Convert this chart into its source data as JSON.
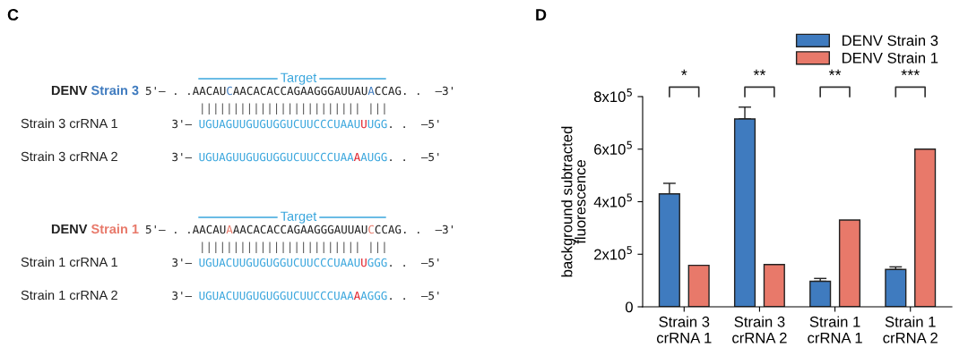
{
  "chart_data": [
    {
      "type": "other",
      "title": "C",
      "annotations": [
        "Target",
        "DENV",
        " Strain 3",
        "5'– . .AACAU",
        "C",
        "AACACACCAGAAGGGAUUAU",
        "A",
        "CCAG. .  –3'",
        "|||||||||||||||||||||||| |||",
        "Strain 3 crRNA 1",
        "3'– ",
        "UGUAGUUGUGUGGUCUUCCCUAAU",
        "U",
        "UGG",
        ". .  –5'",
        "Strain 3 crRNA 2",
        "3'– ",
        "UGUAGUUGUGUGGUCUUCCCUAA",
        "A",
        "AUGG",
        ". .  –5'",
        "Target",
        "DENV",
        " Strain 1",
        "5'– . .AACAU",
        "A",
        "AACACACCAGAAGGGAUUAU",
        "C",
        "CCAG. .  –3'",
        "|||||||||||||||||||||||| |||",
        "Strain 1 crRNA 1",
        "3'– ",
        "UGUACUUGUGUGGUCUUCCCUAAU",
        "U",
        "GGG",
        ". .  –5'",
        "Strain 1 crRNA 2",
        "3'– ",
        "UGUACUUGUGUGGUCUUCCCUAA",
        "A",
        "AGGG",
        ". .  –5'"
      ],
      "colors": [
        "#3aa6dd",
        "#222222",
        "#3f7bbf",
        "#222222",
        "#3f7bbf",
        "#222222",
        "#3f7bbf",
        "#222222",
        "#555555",
        "#222222",
        "#222222",
        "#3aa6dd",
        "#e0202a",
        "#3aa6dd",
        "#222222",
        "#222222",
        "#222222",
        "#3aa6dd",
        "#e0202a",
        "#3aa6dd",
        "#222222",
        "#3aa6dd",
        "#222222",
        "#e8796a",
        "#222222",
        "#e8796a",
        "#222222",
        "#e8796a",
        "#222222",
        "#555555",
        "#222222",
        "#222222",
        "#3aa6dd",
        "#e0202a",
        "#3aa6dd",
        "#222222",
        "#222222",
        "#222222",
        "#3aa6dd",
        "#e0202a",
        "#3aa6dd",
        "#222222"
      ]
    },
    {
      "type": "bar",
      "title": "D",
      "ylabel": "background subtracted\nfluorescence",
      "categories": [
        "Strain 3\ncrRNA 1",
        "Strain 3\ncrRNA 2",
        "Strain 1\ncrRNA 1",
        "Strain 1\ncrRNA 2"
      ],
      "series": [
        {
          "name": "DENV Strain 3",
          "color": "#3f7bbf",
          "values": [
            430000,
            715000,
            97000,
            142000
          ],
          "errors": [
            [
              430000,
              470000
            ],
            [
              715000,
              760000
            ],
            [
              97000,
              108000
            ],
            [
              142000,
              152000
            ]
          ]
        },
        {
          "name": "DENV Strain 1",
          "color": "#e8796a",
          "values": [
            158000,
            161000,
            330000,
            600000
          ]
        }
      ],
      "ylim": [
        0,
        800000
      ],
      "yticks": [
        0,
        {
          "value": 200000,
          "label": "2x10$^{5}$"
        },
        {
          "value": 400000,
          "label": "4x10$^{5}$"
        },
        {
          "value": 600000,
          "label": "6x10$^{5}$"
        },
        {
          "value": 800000,
          "label": "8x10$^{5}$"
        }
      ],
      "annotations": [
        "*",
        "**",
        "**",
        "***"
      ],
      "legend": "top right",
      "grid": false
    }
  ]
}
